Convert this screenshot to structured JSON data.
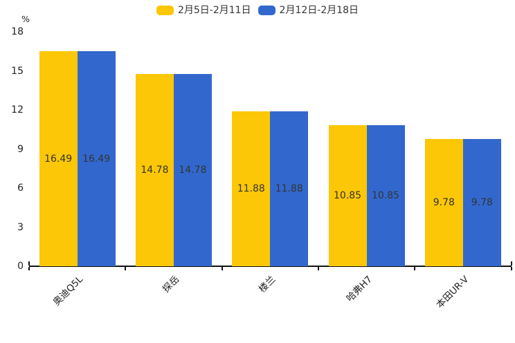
{
  "chart_data": {
    "type": "bar",
    "title": "",
    "unit": "%",
    "categories": [
      "奥迪Q5L",
      "探岳",
      "楼兰",
      "哈弗H7",
      "本田UR-V"
    ],
    "series": [
      {
        "name": "2月5日-2月11日",
        "color": "#FCC706",
        "values": [
          16.49,
          14.78,
          11.88,
          10.85,
          9.78
        ]
      },
      {
        "name": "2月12日-2月18日",
        "color": "#3268CD",
        "values": [
          16.49,
          14.78,
          11.88,
          10.85,
          9.78
        ]
      }
    ],
    "yticks": [
      0,
      3,
      6,
      9,
      12,
      15,
      18
    ],
    "ylim": [
      0,
      18
    ],
    "xlabel": "",
    "ylabel": "%",
    "legend_position": "top-center",
    "grid": false,
    "value_label_position": "inside-center",
    "colors": {
      "value_label": "#333333",
      "axis": "#111111",
      "tick_label": "#222222",
      "background": "#ffffff"
    }
  }
}
